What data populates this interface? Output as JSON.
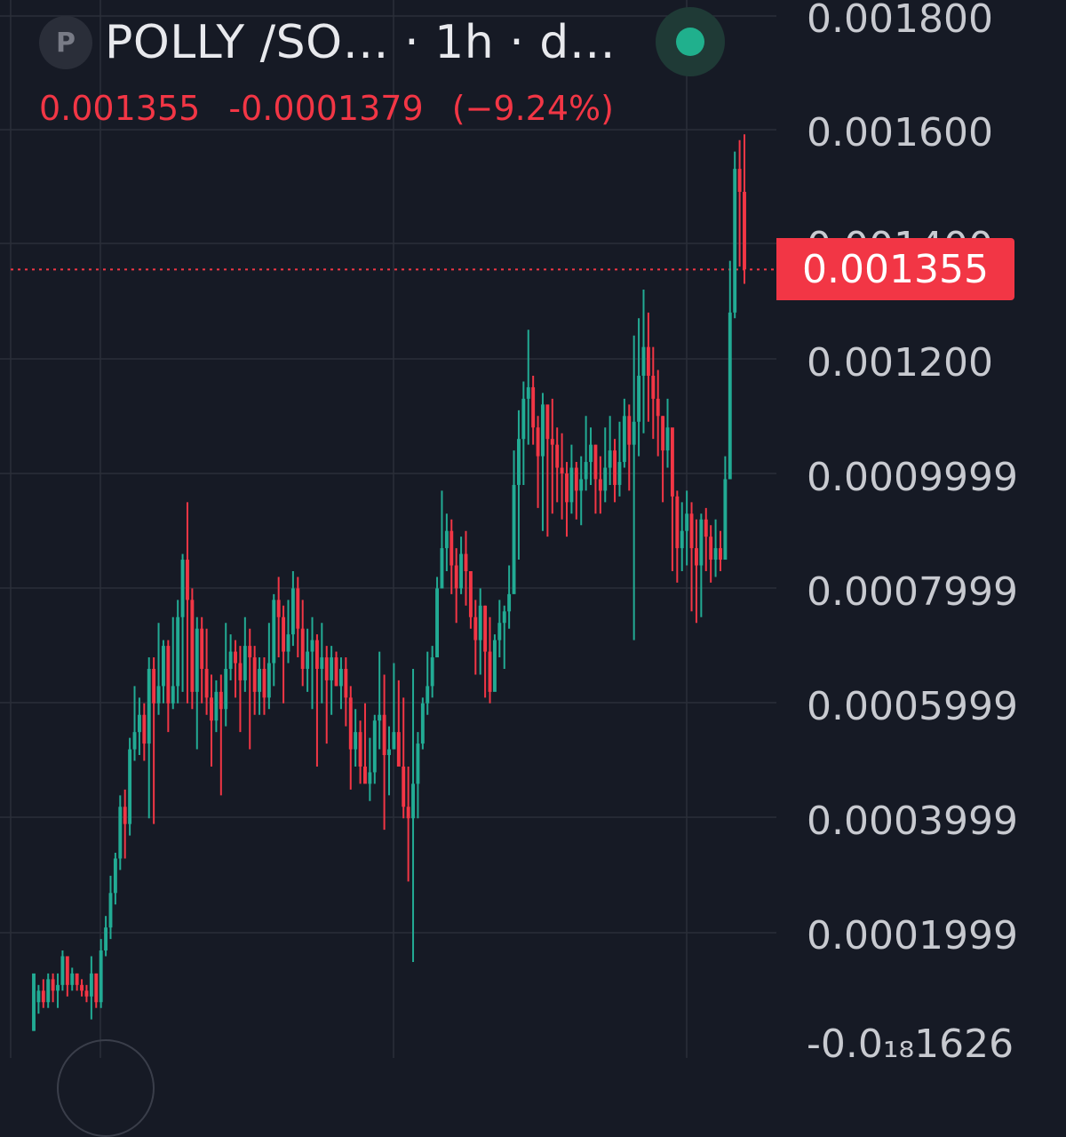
{
  "header": {
    "symbol_letter": "P",
    "title": "POLLY /SO…  · 1h · d…"
  },
  "quote": {
    "last": "0.001355",
    "change": "-0.0001379",
    "change_pct": "(−9.24%)"
  },
  "status": {
    "icon": "live-dot-icon",
    "color": "#20b08d"
  },
  "price_axis": {
    "labels": [
      "0.001800",
      "0.001600",
      "0.001400",
      "0.001200",
      "0.0009999",
      "0.0007999",
      "0.0005999",
      "0.0003999",
      "0.0001999",
      "-0.0₁₈1626"
    ],
    "current_price_tag": "0.001355"
  },
  "colors": {
    "up": "#22ab94",
    "down": "#f23645",
    "background": "#161a25",
    "grid": "#2a2e39"
  },
  "chart_data": {
    "type": "candlestick",
    "timeframe": "1h",
    "ylim": [
      0,
      0.0018
    ],
    "last_price": 0.001355,
    "ohlc": [
      [
        3e-05,
        0.00013,
        3e-05,
        8e-05
      ],
      [
        8e-05,
        0.0001,
        0.00011,
        6e-05
      ],
      [
        0.0001,
        8e-05,
        0.00012,
        7e-05
      ],
      [
        8e-05,
        0.00012,
        0.00013,
        7e-05
      ],
      [
        0.00012,
        0.0001,
        0.00013,
        8e-05
      ],
      [
        0.0001,
        0.00011,
        0.00013,
        7e-05
      ],
      [
        0.00011,
        0.00016,
        0.00017,
        0.0001
      ],
      [
        0.00016,
        0.00011,
        0.00016,
        9e-05
      ],
      [
        0.00011,
        0.00013,
        0.00014,
        0.0001
      ],
      [
        0.00013,
        0.00011,
        0.00013,
        0.0001
      ],
      [
        0.00011,
        0.0001,
        0.00012,
        9e-05
      ],
      [
        0.0001,
        9e-05,
        0.00011,
        8e-05
      ],
      [
        9e-05,
        0.00013,
        0.00016,
        5e-05
      ],
      [
        0.00013,
        8e-05,
        0.00013,
        7e-05
      ],
      [
        8e-05,
        0.00017,
        0.00019,
        7e-05
      ],
      [
        0.00017,
        0.00021,
        0.00023,
        0.00016
      ],
      [
        0.00021,
        0.00027,
        0.0003,
        0.00019
      ],
      [
        0.00027,
        0.00033,
        0.00034,
        0.00025
      ],
      [
        0.00033,
        0.00042,
        0.00044,
        0.00031
      ],
      [
        0.00042,
        0.00039,
        0.00045,
        0.00033
      ],
      [
        0.00039,
        0.00052,
        0.00054,
        0.00037
      ],
      [
        0.00052,
        0.00055,
        0.00063,
        0.0005
      ],
      [
        0.00055,
        0.00058,
        0.00061,
        0.00051
      ],
      [
        0.00058,
        0.00053,
        0.0006,
        0.0005
      ],
      [
        0.00053,
        0.00066,
        0.00068,
        0.0004
      ],
      [
        0.00066,
        0.0006,
        0.00068,
        0.00039
      ],
      [
        0.0006,
        0.00063,
        0.00074,
        0.00058
      ],
      [
        0.00063,
        0.0007,
        0.00071,
        0.0006
      ],
      [
        0.0007,
        0.0006,
        0.00071,
        0.00055
      ],
      [
        0.0006,
        0.00063,
        0.00075,
        0.00059
      ],
      [
        0.00063,
        0.00075,
        0.00078,
        0.0006
      ],
      [
        0.00075,
        0.00085,
        0.00086,
        0.00062
      ],
      [
        0.00085,
        0.00078,
        0.00095,
        0.0006
      ],
      [
        0.00078,
        0.00062,
        0.0008,
        0.00059
      ],
      [
        0.00062,
        0.00073,
        0.00075,
        0.00052
      ],
      [
        0.00073,
        0.00066,
        0.00075,
        0.0006
      ],
      [
        0.00066,
        0.00061,
        0.00073,
        0.00058
      ],
      [
        0.00061,
        0.00057,
        0.00065,
        0.00049
      ],
      [
        0.00057,
        0.00062,
        0.00064,
        0.00055
      ],
      [
        0.00062,
        0.00059,
        0.00065,
        0.00044
      ],
      [
        0.00059,
        0.00066,
        0.00074,
        0.00056
      ],
      [
        0.00066,
        0.00069,
        0.00072,
        0.00064
      ],
      [
        0.00069,
        0.00067,
        0.00071,
        0.00061
      ],
      [
        0.00067,
        0.00064,
        0.0007,
        0.00055
      ],
      [
        0.00064,
        0.0007,
        0.00075,
        0.00062
      ],
      [
        0.0007,
        0.00068,
        0.00073,
        0.00052
      ],
      [
        0.00068,
        0.00062,
        0.0007,
        0.00058
      ],
      [
        0.00062,
        0.00066,
        0.00068,
        0.00058
      ],
      [
        0.00066,
        0.00061,
        0.00068,
        0.00058
      ],
      [
        0.00061,
        0.00067,
        0.00074,
        0.00059
      ],
      [
        0.00067,
        0.00078,
        0.00079,
        0.00063
      ],
      [
        0.00078,
        0.00075,
        0.00082,
        0.00068
      ],
      [
        0.00075,
        0.00069,
        0.00077,
        0.0006
      ],
      [
        0.00069,
        0.00072,
        0.00078,
        0.00067
      ],
      [
        0.00072,
        0.0008,
        0.00083,
        0.0007
      ],
      [
        0.0008,
        0.00073,
        0.00082,
        0.00068
      ],
      [
        0.00073,
        0.00066,
        0.00078,
        0.00063
      ],
      [
        0.00066,
        0.00069,
        0.00073,
        0.00062
      ],
      [
        0.00069,
        0.00071,
        0.00075,
        0.00059
      ],
      [
        0.00071,
        0.00066,
        0.00072,
        0.00049
      ],
      [
        0.00066,
        0.00068,
        0.00074,
        0.0006
      ],
      [
        0.00068,
        0.00064,
        0.0007,
        0.00053
      ],
      [
        0.00064,
        0.00068,
        0.0007,
        0.00058
      ],
      [
        0.00068,
        0.00063,
        0.00069,
        0.00063
      ],
      [
        0.00063,
        0.00066,
        0.00068,
        0.00059
      ],
      [
        0.00066,
        0.00061,
        0.00068,
        0.00056
      ],
      [
        0.00061,
        0.00052,
        0.00063,
        0.00045
      ],
      [
        0.00052,
        0.00055,
        0.00059,
        0.00049
      ],
      [
        0.00055,
        0.00049,
        0.00057,
        0.00046
      ],
      [
        0.00049,
        0.00046,
        0.0006,
        0.00048
      ],
      [
        0.00046,
        0.00048,
        0.00054,
        0.00043
      ],
      [
        0.00048,
        0.00057,
        0.00058,
        0.00046
      ],
      [
        0.00057,
        0.00058,
        0.00069,
        0.00052
      ],
      [
        0.00058,
        0.00051,
        0.00065,
        0.00038
      ],
      [
        0.00051,
        0.00052,
        0.00056,
        0.00044
      ],
      [
        0.00052,
        0.00055,
        0.00067,
        0.00052
      ],
      [
        0.00055,
        0.00049,
        0.00064,
        0.00052
      ],
      [
        0.00049,
        0.00042,
        0.00061,
        0.0004
      ],
      [
        0.00042,
        0.0004,
        0.00049,
        0.00029
      ],
      [
        0.0004,
        0.00046,
        0.00066,
        0.00015
      ],
      [
        0.00046,
        0.00053,
        0.00055,
        0.0004
      ],
      [
        0.00053,
        0.0006,
        0.00061,
        0.00052
      ],
      [
        0.0006,
        0.00063,
        0.00069,
        0.00058
      ],
      [
        0.00063,
        0.00068,
        0.0007,
        0.00061
      ],
      [
        0.00068,
        0.0008,
        0.00082,
        0.0007
      ],
      [
        0.0008,
        0.00087,
        0.00097,
        0.0008
      ],
      [
        0.00087,
        0.0009,
        0.00093,
        0.00083
      ],
      [
        0.0009,
        0.00084,
        0.00092,
        0.00079
      ],
      [
        0.00084,
        0.0008,
        0.00087,
        0.00074
      ],
      [
        0.0008,
        0.00086,
        0.00089,
        0.00079
      ],
      [
        0.00086,
        0.00083,
        0.0009,
        0.00077
      ],
      [
        0.00083,
        0.00075,
        0.00083,
        0.00073
      ],
      [
        0.00075,
        0.00071,
        0.00078,
        0.00065
      ],
      [
        0.00071,
        0.00077,
        0.0008,
        0.00065
      ],
      [
        0.00077,
        0.00069,
        0.00077,
        0.00061
      ],
      [
        0.00069,
        0.00062,
        0.00075,
        0.0006
      ],
      [
        0.00062,
        0.00071,
        0.00072,
        0.00064
      ],
      [
        0.00071,
        0.00074,
        0.00078,
        0.00068
      ],
      [
        0.00074,
        0.00076,
        0.00077,
        0.00066
      ],
      [
        0.00076,
        0.00079,
        0.00084,
        0.00073
      ],
      [
        0.00079,
        0.00098,
        0.00104,
        0.00081
      ],
      [
        0.00098,
        0.00106,
        0.00111,
        0.00085
      ],
      [
        0.00106,
        0.00113,
        0.00116,
        0.00098
      ],
      [
        0.00113,
        0.00115,
        0.00125,
        0.00105
      ],
      [
        0.00115,
        0.00108,
        0.00117,
        0.00105
      ],
      [
        0.00108,
        0.00103,
        0.0011,
        0.00094
      ],
      [
        0.00103,
        0.00112,
        0.00114,
        0.0009
      ],
      [
        0.00112,
        0.00106,
        0.00111,
        0.00089
      ],
      [
        0.00106,
        0.00105,
        0.00113,
        0.00093
      ],
      [
        0.00105,
        0.00101,
        0.00108,
        0.00095
      ],
      [
        0.00101,
        0.001,
        0.00107,
        0.00092
      ],
      [
        0.001,
        0.00095,
        0.00102,
        0.00089
      ],
      [
        0.00095,
        0.00101,
        0.00105,
        0.00093
      ],
      [
        0.00101,
        0.00097,
        0.00102,
        0.00092
      ],
      [
        0.00097,
        0.00099,
        0.00103,
        0.00091
      ],
      [
        0.00099,
        0.00102,
        0.0011,
        0.00097
      ],
      [
        0.00102,
        0.00105,
        0.00108,
        0.00098
      ],
      [
        0.00105,
        0.00099,
        0.00105,
        0.00093
      ],
      [
        0.00099,
        0.00097,
        0.00103,
        0.00093
      ],
      [
        0.00097,
        0.00101,
        0.00108,
        0.00095
      ],
      [
        0.00101,
        0.00104,
        0.0011,
        0.00098
      ],
      [
        0.00104,
        0.00098,
        0.00106,
        0.00095
      ],
      [
        0.00098,
        0.00102,
        0.00109,
        0.00096
      ],
      [
        0.00102,
        0.0011,
        0.00113,
        0.00101
      ],
      [
        0.0011,
        0.00105,
        0.00112,
        0.00097
      ],
      [
        0.00105,
        0.00109,
        0.00124,
        0.00071
      ],
      [
        0.00109,
        0.00117,
        0.00127,
        0.00103
      ],
      [
        0.00117,
        0.00122,
        0.00132,
        0.00107
      ],
      [
        0.00122,
        0.00117,
        0.00128,
        0.00109
      ],
      [
        0.00117,
        0.00113,
        0.00122,
        0.00106
      ],
      [
        0.00113,
        0.0011,
        0.00118,
        0.00103
      ],
      [
        0.0011,
        0.00104,
        0.0011,
        0.00095
      ],
      [
        0.00104,
        0.00108,
        0.00113,
        0.00101
      ],
      [
        0.00108,
        0.00096,
        0.00106,
        0.00083
      ],
      [
        0.00096,
        0.00087,
        0.00097,
        0.00081
      ],
      [
        0.00087,
        0.0009,
        0.00095,
        0.00083
      ],
      [
        0.0009,
        0.00093,
        0.00097,
        0.00084
      ],
      [
        0.00093,
        0.00087,
        0.00095,
        0.00076
      ],
      [
        0.00087,
        0.00084,
        0.00092,
        0.00074
      ],
      [
        0.00084,
        0.00092,
        0.00093,
        0.00075
      ],
      [
        0.00092,
        0.00089,
        0.00094,
        0.00083
      ],
      [
        0.00089,
        0.00085,
        0.00091,
        0.00081
      ],
      [
        0.00085,
        0.00087,
        0.00092,
        0.00082
      ],
      [
        0.00087,
        0.00085,
        0.0009,
        0.00083
      ],
      [
        0.00085,
        0.00099,
        0.00103,
        0.00085
      ],
      [
        0.00099,
        0.00128,
        0.00137,
        0.00099
      ],
      [
        0.00128,
        0.00153,
        0.00156,
        0.00127
      ],
      [
        0.00153,
        0.00149,
        0.00158,
        0.00136
      ],
      [
        0.00149,
        0.001355,
        0.00159,
        0.00133
      ]
    ]
  }
}
